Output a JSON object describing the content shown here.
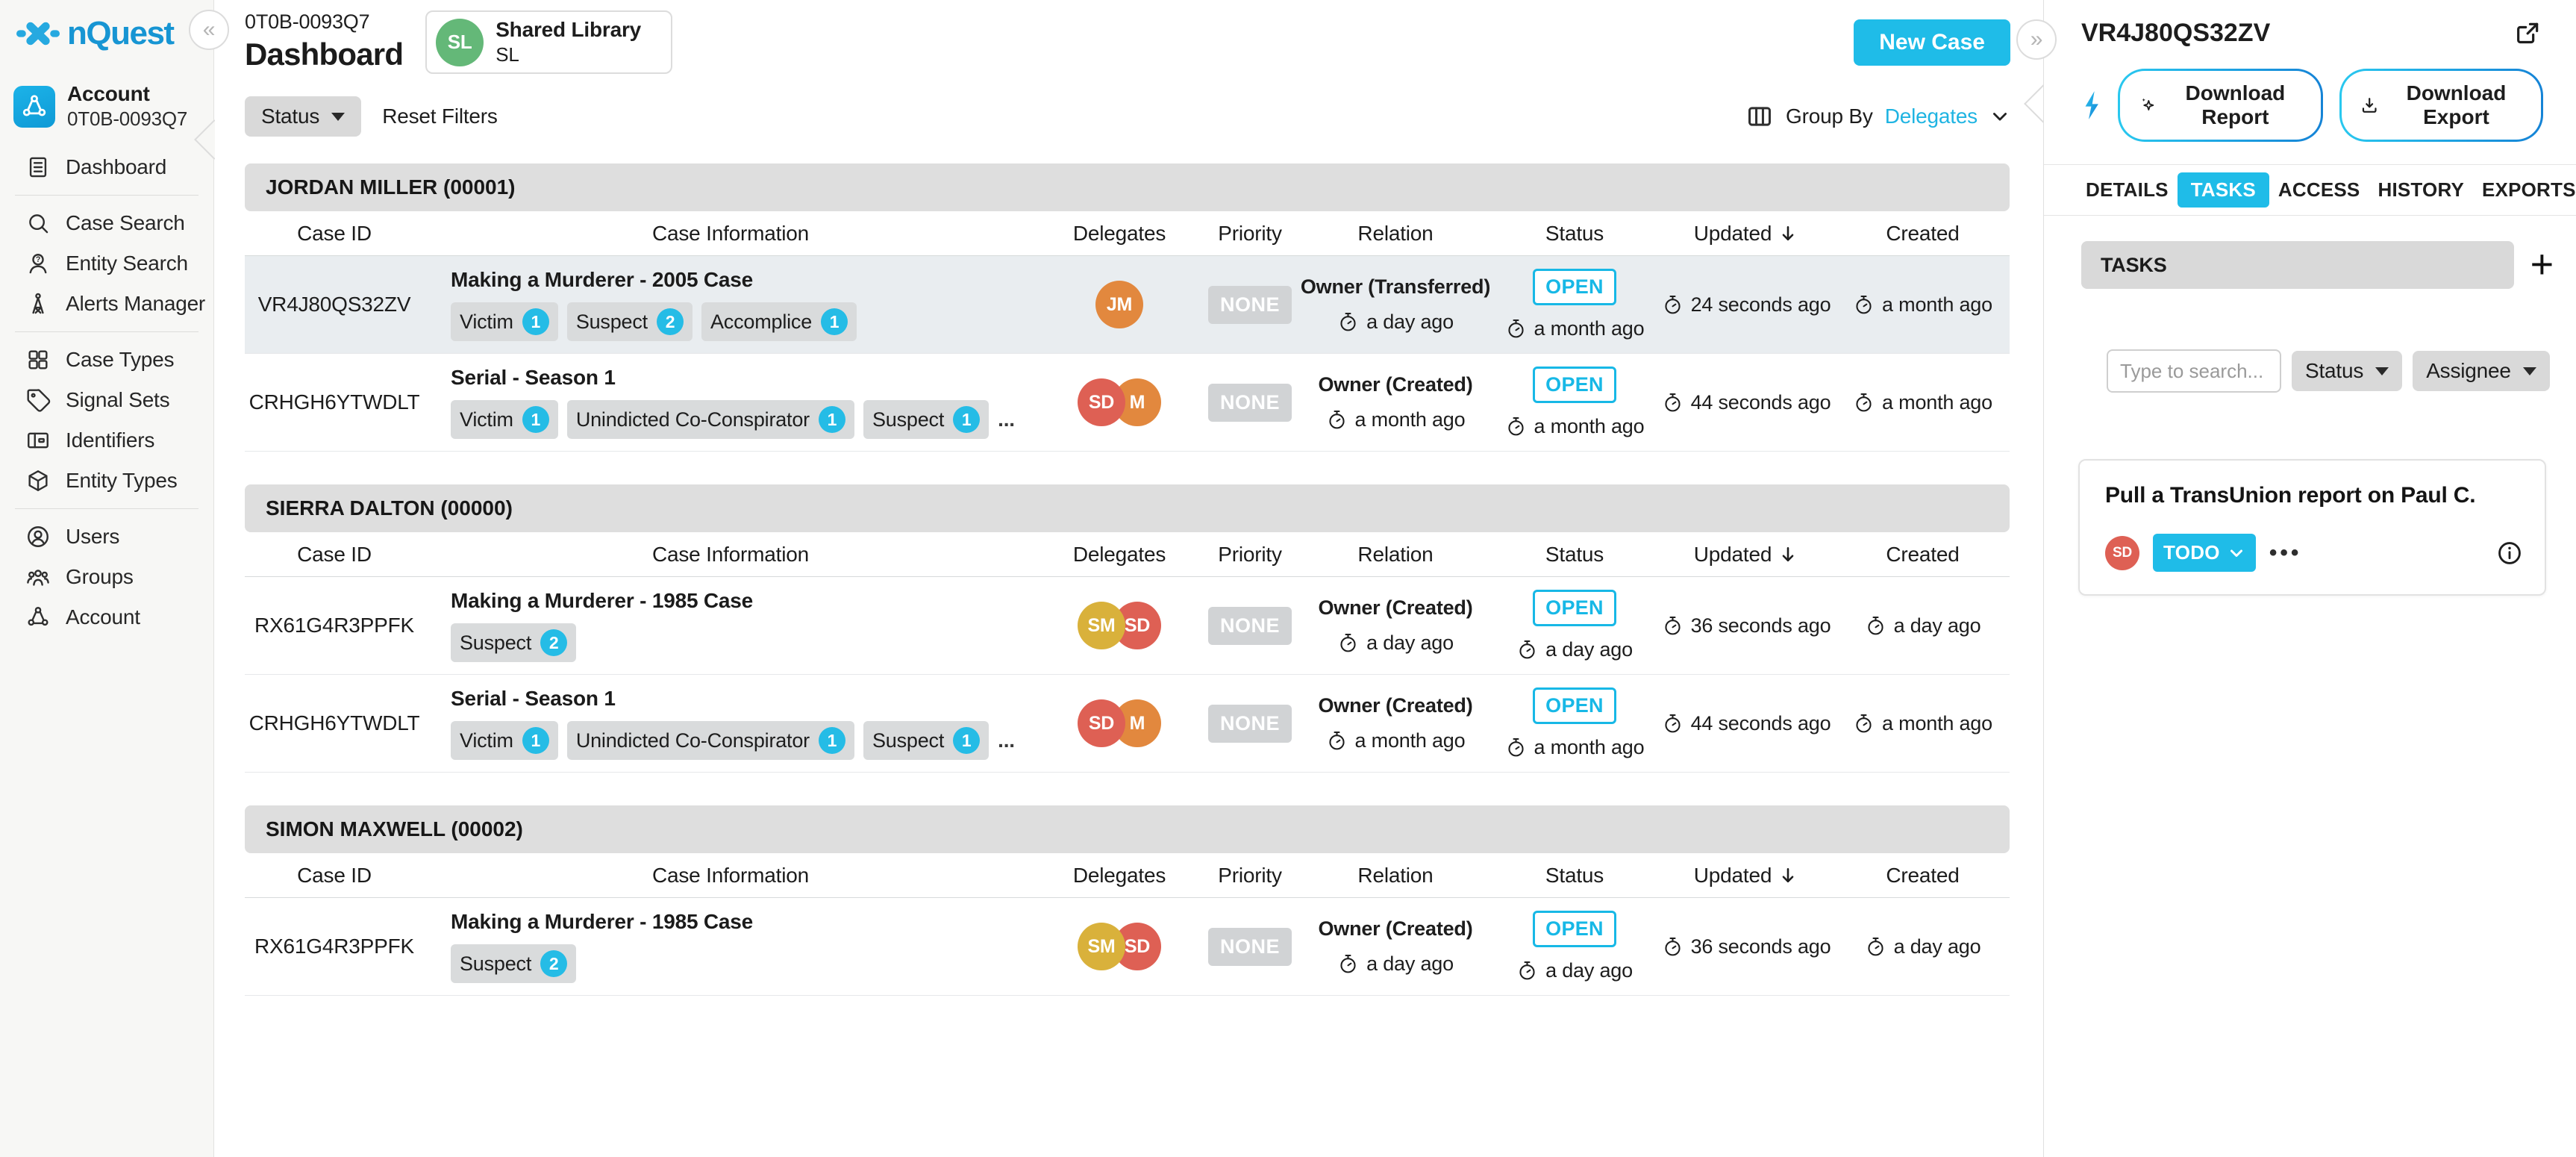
{
  "colors": {
    "accent": "#1fbce8",
    "logo_blue": "#1795d3"
  },
  "sidebar": {
    "logo_text": "nQuest",
    "account": {
      "title": "Account",
      "subtitle": "0T0B-0093Q7"
    },
    "items": [
      {
        "label": "Dashboard"
      },
      {
        "label": "Case Search"
      },
      {
        "label": "Entity Search"
      },
      {
        "label": "Alerts Manager"
      },
      {
        "label": "Case Types"
      },
      {
        "label": "Signal Sets"
      },
      {
        "label": "Identifiers"
      },
      {
        "label": "Entity Types"
      },
      {
        "label": "Users"
      },
      {
        "label": "Groups"
      },
      {
        "label": "Account"
      }
    ]
  },
  "header": {
    "account_id": "0T0B-0093Q7",
    "page_title": "Dashboard",
    "library": {
      "initials": "SL",
      "name": "Shared Library",
      "subtitle": "SL"
    },
    "new_case_label": "New Case"
  },
  "filters": {
    "status_label": "Status",
    "reset_label": "Reset Filters",
    "group_by_label": "Group By",
    "group_by_value": "Delegates"
  },
  "table": {
    "columns": [
      "Case ID",
      "Case Information",
      "Delegates",
      "Priority",
      "Relation",
      "Status",
      "Updated",
      "Created"
    ],
    "overflow_label": "...",
    "groups": [
      {
        "name": "JORDAN MILLER (00001)",
        "rows": [
          {
            "case_id": "VR4J80QS32ZV",
            "title": "Making a Murderer - 2005 Case",
            "tags": [
              {
                "label": "Victim",
                "count": 1
              },
              {
                "label": "Suspect",
                "count": 2
              },
              {
                "label": "Accomplice",
                "count": 1
              }
            ],
            "overflow": false,
            "delegates": [
              {
                "initials": "JM",
                "color": "#e2883e"
              }
            ],
            "priority": "NONE",
            "relation": "Owner (Transferred)",
            "relation_time": "a day ago",
            "status": "OPEN",
            "status_time": "a month ago",
            "updated": "24 seconds ago",
            "created": "a month ago",
            "selected": true
          },
          {
            "case_id": "CRHGH6YTWDLT",
            "title": "Serial - Season 1",
            "tags": [
              {
                "label": "Victim",
                "count": 1
              },
              {
                "label": "Unindicted Co-Conspirator",
                "count": 1
              },
              {
                "label": "Suspect",
                "count": 1
              }
            ],
            "overflow": true,
            "delegates": [
              {
                "initials": "SD",
                "color": "#de6054"
              },
              {
                "initials": "M",
                "color": "#e2883e"
              }
            ],
            "priority": "NONE",
            "relation": "Owner (Created)",
            "relation_time": "a month ago",
            "status": "OPEN",
            "status_time": "a month ago",
            "updated": "44 seconds ago",
            "created": "a month ago",
            "selected": false
          }
        ]
      },
      {
        "name": "SIERRA DALTON (00000)",
        "rows": [
          {
            "case_id": "RX61G4R3PPFK",
            "title": "Making a Murderer - 1985 Case",
            "tags": [
              {
                "label": "Suspect",
                "count": 2
              }
            ],
            "overflow": false,
            "delegates": [
              {
                "initials": "SM",
                "color": "#d9b13b"
              },
              {
                "initials": "SD",
                "color": "#de6054"
              }
            ],
            "priority": "NONE",
            "relation": "Owner (Created)",
            "relation_time": "a day ago",
            "status": "OPEN",
            "status_time": "a day ago",
            "updated": "36 seconds ago",
            "created": "a day ago",
            "selected": false
          },
          {
            "case_id": "CRHGH6YTWDLT",
            "title": "Serial - Season 1",
            "tags": [
              {
                "label": "Victim",
                "count": 1
              },
              {
                "label": "Unindicted Co-Conspirator",
                "count": 1
              },
              {
                "label": "Suspect",
                "count": 1
              }
            ],
            "overflow": true,
            "delegates": [
              {
                "initials": "SD",
                "color": "#de6054"
              },
              {
                "initials": "M",
                "color": "#e2883e"
              }
            ],
            "priority": "NONE",
            "relation": "Owner (Created)",
            "relation_time": "a month ago",
            "status": "OPEN",
            "status_time": "a month ago",
            "updated": "44 seconds ago",
            "created": "a month ago",
            "selected": false
          }
        ]
      },
      {
        "name": "SIMON MAXWELL (00002)",
        "rows": [
          {
            "case_id": "RX61G4R3PPFK",
            "title": "Making a Murderer - 1985 Case",
            "tags": [
              {
                "label": "Suspect",
                "count": 2
              }
            ],
            "overflow": false,
            "delegates": [
              {
                "initials": "SM",
                "color": "#d9b13b"
              },
              {
                "initials": "SD",
                "color": "#de6054"
              }
            ],
            "priority": "NONE",
            "relation": "Owner (Created)",
            "relation_time": "a day ago",
            "status": "OPEN",
            "status_time": "a day ago",
            "updated": "36 seconds ago",
            "created": "a day ago",
            "selected": false
          }
        ]
      }
    ]
  },
  "panel": {
    "title": "VR4J80QS32ZV",
    "report_button": "Download Report",
    "export_button": "Download Export",
    "tabs": [
      {
        "label": "DETAILS",
        "active": false
      },
      {
        "label": "TASKS",
        "active": true
      },
      {
        "label": "ACCESS",
        "active": false
      },
      {
        "label": "HISTORY",
        "active": false
      },
      {
        "label": "EXPORTS",
        "active": false
      }
    ],
    "tasks_header": "TASKS",
    "search_placeholder": "Type to search...",
    "status_filter": "Status",
    "assignee_filter": "Assignee",
    "task": {
      "title": "Pull a TransUnion report on Paul C.",
      "assignee": {
        "initials": "SD",
        "color": "#de6054"
      },
      "status": "TODO"
    }
  }
}
